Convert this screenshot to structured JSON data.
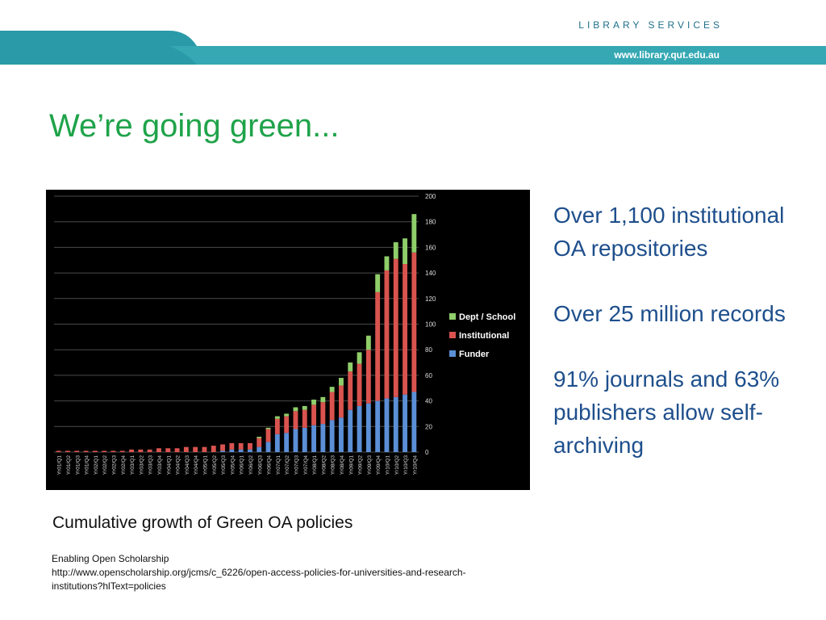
{
  "header": {
    "brand": "LIBRARY SERVICES",
    "url": "www.library.qut.edu.au",
    "colors": {
      "band": "#2a9aa8",
      "band_light": "#3fb3bd"
    }
  },
  "title": "We’re going green...",
  "stats": [
    "Over 1,100 institutional OA repositories",
    "Over 25 million records",
    "91% journals and 63% publishers allow self-archiving"
  ],
  "caption": "Cumulative growth of Green OA policies",
  "source": {
    "line1": "Enabling Open Scholarship",
    "line2": "http://www.openscholarship.org/jcms/c_6226/open-access-policies-for-universities-and-research-institutions?hlText=policies"
  },
  "chart_data": {
    "type": "bar",
    "stacked": true,
    "ylim": [
      0,
      200
    ],
    "yticks": [
      0,
      20,
      40,
      60,
      80,
      100,
      120,
      140,
      160,
      180,
      200
    ],
    "legend_position": "right",
    "categories": [
      "Yr01/Q1",
      "Yr01/Q2",
      "Yr01/Q3",
      "Yr01/Q4",
      "Yr02/Q1",
      "Yr02/Q2",
      "Yr02/Q3",
      "Yr02/Q4",
      "Yr03/Q1",
      "Yr03/Q2",
      "Yr03/Q3",
      "Yr03/Q4",
      "Yr04/Q1",
      "Yr04/Q2",
      "Yr04/Q3",
      "Yr04/Q4",
      "Yr05/Q1",
      "Yr05/Q2",
      "Yr05/Q3",
      "Yr05/Q4",
      "Yr06/Q1",
      "Yr06/Q2",
      "Yr06/Q3",
      "Yr06/Q4",
      "Yr07/Q1",
      "Yr07/Q2",
      "Yr07/Q3",
      "Yr07/Q4",
      "Yr08/Q1",
      "Yr08/Q2",
      "Yr08/Q3",
      "Yr08/Q4",
      "Yr09/Q1",
      "Yr09/Q2",
      "Yr09/Q3",
      "Yr09/Q4",
      "Yr10/Q1",
      "Yr10/Q2",
      "Yr10/Q3",
      "Yr10/Q4"
    ],
    "series": [
      {
        "name": "Funder",
        "color": "#5b8fd6",
        "values": [
          0,
          0,
          0,
          0,
          0,
          0,
          0,
          0,
          0,
          0,
          0,
          0,
          0,
          0,
          0,
          0,
          0,
          0,
          1,
          2,
          2,
          2,
          4,
          8,
          14,
          15,
          18,
          19,
          21,
          22,
          25,
          27,
          33,
          36,
          38,
          40,
          42,
          43,
          45,
          47
        ]
      },
      {
        "name": "Institutional",
        "color": "#d9534f",
        "values": [
          1,
          1,
          1,
          1,
          1,
          1,
          1,
          1,
          2,
          2,
          2,
          3,
          3,
          3,
          4,
          4,
          4,
          5,
          5,
          5,
          5,
          5,
          7,
          10,
          12,
          13,
          14,
          14,
          16,
          17,
          22,
          25,
          30,
          33,
          42,
          85,
          100,
          108,
          102,
          109
        ]
      },
      {
        "name": "Dept / School",
        "color": "#8fce6a",
        "values": [
          0,
          0,
          0,
          0,
          0,
          0,
          0,
          0,
          0,
          0,
          0,
          0,
          0,
          0,
          0,
          0,
          0,
          0,
          0,
          0,
          0,
          0,
          1,
          1,
          2,
          2,
          3,
          3,
          4,
          4,
          4,
          6,
          7,
          9,
          11,
          14,
          11,
          13,
          20,
          30
        ]
      }
    ]
  }
}
